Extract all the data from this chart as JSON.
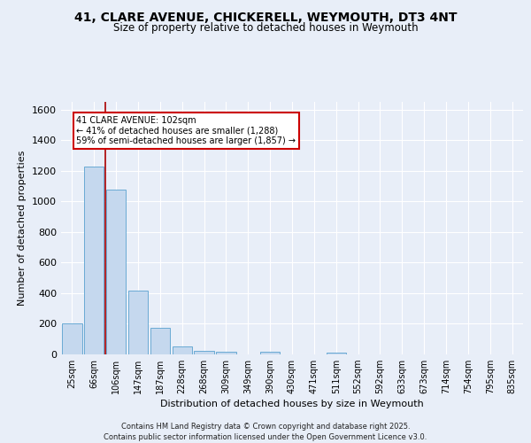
{
  "title": "41, CLARE AVENUE, CHICKERELL, WEYMOUTH, DT3 4NT",
  "subtitle": "Size of property relative to detached houses in Weymouth",
  "xlabel": "Distribution of detached houses by size in Weymouth",
  "ylabel": "Number of detached properties",
  "categories": [
    "25sqm",
    "66sqm",
    "106sqm",
    "147sqm",
    "187sqm",
    "228sqm",
    "268sqm",
    "309sqm",
    "349sqm",
    "390sqm",
    "430sqm",
    "471sqm",
    "511sqm",
    "552sqm",
    "592sqm",
    "633sqm",
    "673sqm",
    "714sqm",
    "754sqm",
    "795sqm",
    "835sqm"
  ],
  "values": [
    200,
    1230,
    1075,
    415,
    175,
    50,
    25,
    15,
    0,
    15,
    0,
    0,
    10,
    0,
    0,
    0,
    0,
    0,
    0,
    0,
    0
  ],
  "bar_color": "#c5d8ee",
  "bar_edge_color": "#6aaad4",
  "background_color": "#e8eef8",
  "grid_color": "#ffffff",
  "vline_x": 1.5,
  "vline_color": "#aa0000",
  "annotation_line1": "41 CLARE AVENUE: 102sqm",
  "annotation_line2": "← 41% of detached houses are smaller (1,288)",
  "annotation_line3": "59% of semi-detached houses are larger (1,857) →",
  "annotation_box_color": "#ffffff",
  "annotation_box_edge": "#cc0000",
  "ylim": [
    0,
    1650
  ],
  "yticks": [
    0,
    200,
    400,
    600,
    800,
    1000,
    1200,
    1400,
    1600
  ],
  "footer_line1": "Contains HM Land Registry data © Crown copyright and database right 2025.",
  "footer_line2": "Contains public sector information licensed under the Open Government Licence v3.0."
}
